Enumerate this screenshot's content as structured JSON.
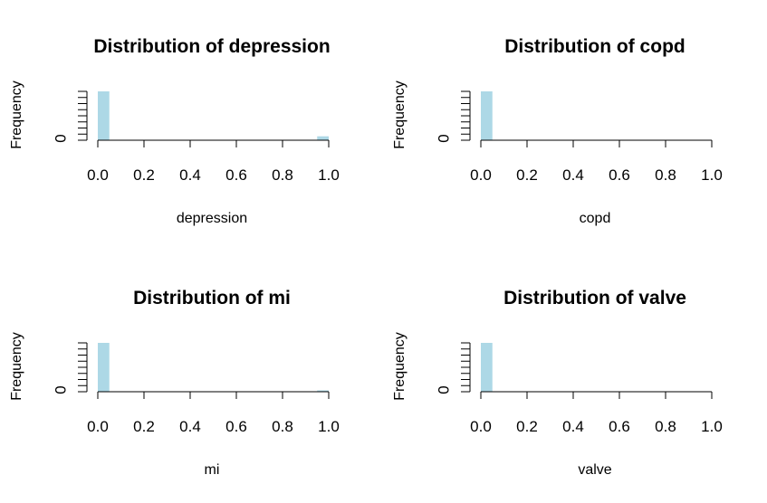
{
  "chart_data": [
    {
      "type": "bar",
      "title": "Distribution of depression",
      "xlabel": "depression",
      "ylabel": "Frequency",
      "x_ticks": [
        "0.0",
        "0.2",
        "0.4",
        "0.6",
        "0.8",
        "1.0"
      ],
      "x_range": [
        0,
        1
      ],
      "y_ticks": [
        "0"
      ],
      "bins": [
        {
          "x0": 0.0,
          "x1": 0.05,
          "value": 1.0
        },
        {
          "x0": 0.95,
          "x1": 1.0,
          "value": 0.08
        }
      ],
      "colors": {
        "bar": "#add8e6"
      }
    },
    {
      "type": "bar",
      "title": "Distribution of copd",
      "xlabel": "copd",
      "ylabel": "Frequency",
      "x_ticks": [
        "0.0",
        "0.2",
        "0.4",
        "0.6",
        "0.8",
        "1.0"
      ],
      "x_range": [
        0,
        1
      ],
      "y_ticks": [
        "0"
      ],
      "bins": [
        {
          "x0": 0.0,
          "x1": 0.05,
          "value": 1.0
        }
      ],
      "colors": {
        "bar": "#add8e6"
      }
    },
    {
      "type": "bar",
      "title": "Distribution of mi",
      "xlabel": "mi",
      "ylabel": "Frequency",
      "x_ticks": [
        "0.0",
        "0.2",
        "0.4",
        "0.6",
        "0.8",
        "1.0"
      ],
      "x_range": [
        0,
        1
      ],
      "y_ticks": [
        "0"
      ],
      "bins": [
        {
          "x0": 0.0,
          "x1": 0.05,
          "value": 1.0
        },
        {
          "x0": 0.95,
          "x1": 1.0,
          "value": 0.02
        }
      ],
      "colors": {
        "bar": "#add8e6"
      }
    },
    {
      "type": "bar",
      "title": "Distribution of valve",
      "xlabel": "valve",
      "ylabel": "Frequency",
      "x_ticks": [
        "0.0",
        "0.2",
        "0.4",
        "0.6",
        "0.8",
        "1.0"
      ],
      "x_range": [
        0,
        1
      ],
      "y_ticks": [
        "0"
      ],
      "bins": [
        {
          "x0": 0.0,
          "x1": 0.05,
          "value": 1.0
        }
      ],
      "colors": {
        "bar": "#add8e6"
      }
    }
  ]
}
